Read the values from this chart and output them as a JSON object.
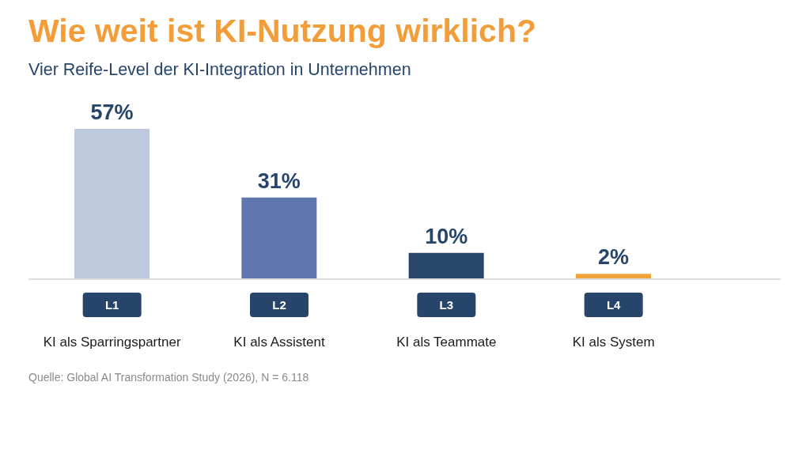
{
  "chart_data": {
    "type": "bar",
    "title": "Wie weit ist KI-Nutzung wirklich?",
    "subtitle": "Vier Reife-Level der KI-Integration in Unternehmen",
    "categories": [
      "L1\nKI als Sparringspartner",
      "L2\nKI als Assistent",
      "L3\nKI als Teammate",
      "L4\nKI als System"
    ],
    "values": [
      57,
      31,
      10,
      2
    ],
    "colors": [
      "#bcc9dd",
      "#5f77ae",
      "#28466a",
      "#f2a33a"
    ],
    "value_labels": [
      "57%",
      "31%",
      "10%",
      "2%"
    ],
    "annotations": [
      "Quelle: Global AI Transformation Study (2026), N = 6.118"
    ]
  }
}
